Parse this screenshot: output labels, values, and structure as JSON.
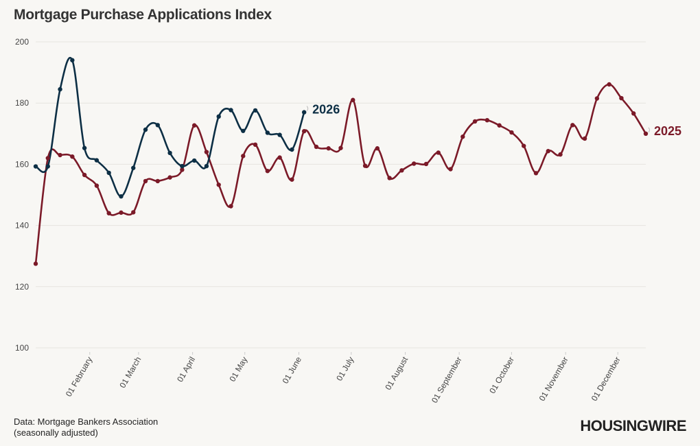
{
  "chart_data": {
    "type": "line",
    "title": "Mortgage Purchase Applications Index",
    "ylim": [
      100,
      200
    ],
    "yticks": [
      100,
      120,
      140,
      160,
      180,
      200
    ],
    "xlabels": [
      "01 February",
      "01 March",
      "01 April",
      "01 May",
      "01 June",
      "01 July",
      "01 August",
      "01 September",
      "01 October",
      "01 November",
      "01 December"
    ],
    "xlabel_weeks": [
      4.43,
      8.43,
      12.86,
      17.14,
      21.57,
      25.86,
      30.29,
      34.71,
      39.0,
      43.43,
      47.71
    ],
    "grid": true,
    "series": [
      {
        "name": "2025",
        "color": "#7b1a28",
        "weeks": [
          0,
          1,
          2,
          3,
          4,
          5,
          6,
          7,
          8,
          9,
          10,
          11,
          12,
          13,
          14,
          15,
          16,
          17,
          18,
          19,
          20,
          21,
          22,
          23,
          24,
          25,
          26,
          27,
          28,
          29,
          30,
          31,
          32,
          33,
          34,
          35,
          36,
          37,
          38,
          39,
          40,
          41,
          42,
          43,
          44,
          45,
          46,
          47,
          48,
          49,
          50
        ],
        "values": [
          127.5,
          162,
          163,
          162.5,
          156.5,
          153,
          144,
          144.2,
          144.3,
          154.5,
          154.5,
          155.7,
          158.2,
          172.7,
          164,
          153.3,
          146.3,
          162.7,
          166.4,
          157.8,
          162.2,
          155,
          170.8,
          165.7,
          165.2,
          165.3,
          181,
          159.5,
          165.2,
          155.5,
          158,
          160.2,
          160.1,
          163.8,
          158.4,
          169,
          174,
          174.4,
          172.7,
          170.4,
          166,
          157.1,
          164.3,
          163.2,
          172.8,
          168.4,
          181.5,
          186.1,
          181.6,
          176.6,
          170
        ]
      },
      {
        "name": "2026",
        "color": "#0d2f45",
        "weeks": [
          0,
          1,
          2,
          3,
          4,
          5,
          6,
          7,
          8,
          9,
          10,
          11,
          12,
          13,
          14,
          15,
          16,
          17,
          18,
          19,
          20,
          21,
          22
        ],
        "values": [
          159.3,
          159.3,
          184.5,
          194,
          165.3,
          161.3,
          157.2,
          149.5,
          158.8,
          171.3,
          172.8,
          163.7,
          159.4,
          161.2,
          159.4,
          175.6,
          177.7,
          170.9,
          177.6,
          170.3,
          169.6,
          164.8,
          177
        ]
      }
    ]
  },
  "footer": {
    "source": "Data: Mortgage Bankers Association",
    "note": "(seasonally adjusted)",
    "logo": "HOUSINGWIRE"
  }
}
